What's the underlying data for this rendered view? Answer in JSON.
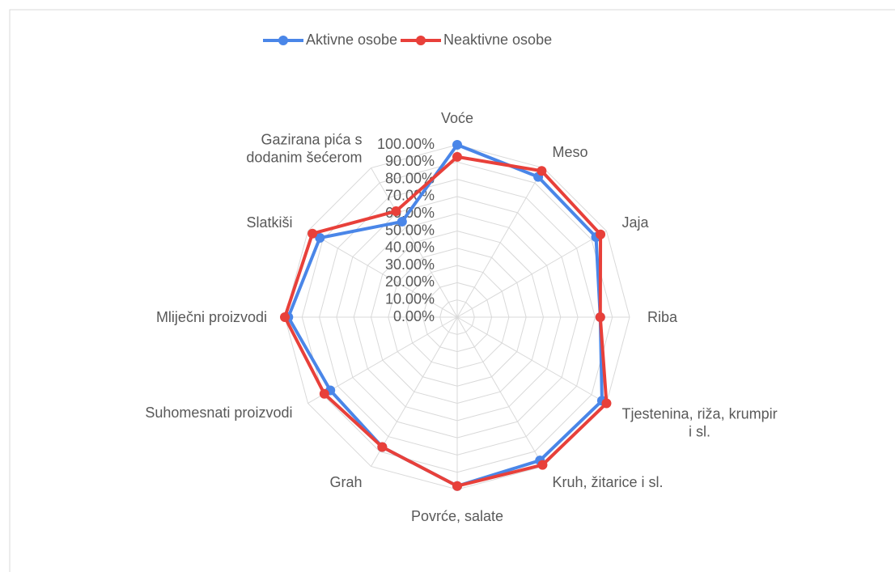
{
  "chart_data": {
    "type": "radar",
    "categories": [
      "Voće",
      "Meso",
      "Jaja",
      "Riba",
      "Tjestenina, riža, krumpir\ni sl.",
      "Kruh, žitarice i sl.",
      "Povrće, salate",
      "Grah",
      "Suhomesnati proizvodi",
      "Mliječni proizvodi",
      "Slatkiši",
      "Gazirana pića s\ndodanim šećerom"
    ],
    "series": [
      {
        "name": "Aktivne osobe",
        "color": "#4a86e8",
        "values": [
          100,
          94,
          93,
          83,
          97,
          96,
          98,
          87,
          85,
          98,
          92,
          64
        ]
      },
      {
        "name": "Neaktivne osobe",
        "color": "#e8403a",
        "values": [
          93,
          98,
          96,
          83,
          100,
          99,
          98,
          87,
          89,
          100,
          97,
          71
        ]
      }
    ],
    "ylim": [
      0,
      100
    ],
    "yticks": [
      {
        "value": 0,
        "label": "0.00%"
      },
      {
        "value": 10,
        "label": "10.00%"
      },
      {
        "value": 20,
        "label": "20.00%"
      },
      {
        "value": 30,
        "label": "30.00%"
      },
      {
        "value": 40,
        "label": "40.00%"
      },
      {
        "value": 50,
        "label": "50.00%"
      },
      {
        "value": 60,
        "label": "60.00%"
      },
      {
        "value": 70,
        "label": "70.00%"
      },
      {
        "value": 80,
        "label": "80.00%"
      },
      {
        "value": 90,
        "label": "90.00%"
      },
      {
        "value": 100,
        "label": "100.00%"
      }
    ],
    "grid": true,
    "legend": "top"
  }
}
